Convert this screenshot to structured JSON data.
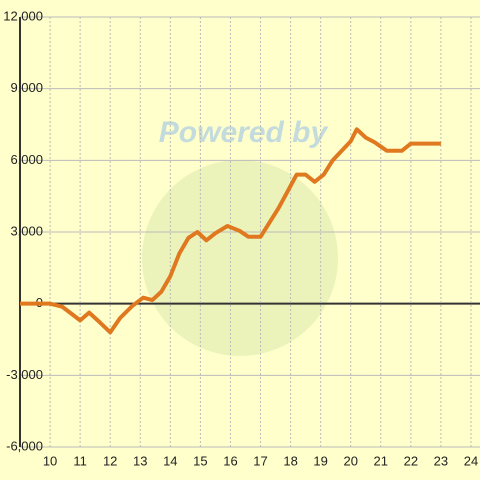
{
  "chart_data": {
    "type": "line",
    "watermark": "Powered by",
    "x": [
      9,
      10,
      10.4,
      11,
      11.3,
      11.67,
      12,
      12.33,
      12.73,
      13.1,
      13.4,
      13.7,
      14,
      14.3,
      14.6,
      14.9,
      15.2,
      15.5,
      15.9,
      16.3,
      16.6,
      17,
      17.3,
      17.6,
      17.9,
      18.2,
      18.5,
      18.8,
      19.1,
      19.4,
      19.7,
      20,
      20.2,
      20.5,
      20.8,
      21.2,
      21.7,
      22,
      23
    ],
    "series": [
      {
        "color": "#e07820",
        "values": [
          0,
          0,
          -125,
          -700,
          -375,
          -800,
          -1200,
          -600,
          -100,
          250,
          150,
          500,
          1150,
          2100,
          2750,
          3000,
          2650,
          2950,
          3250,
          3050,
          2800,
          2800,
          3400,
          4000,
          4700,
          5400,
          5400,
          5100,
          5400,
          6000,
          6400,
          6800,
          7300,
          6950,
          6750,
          6400,
          6400,
          6700,
          6700
        ]
      }
    ],
    "xlim": [
      9,
      24.3
    ],
    "xticks": [
      10,
      11,
      12,
      13,
      14,
      15,
      16,
      17,
      18,
      19,
      20,
      21,
      22,
      23,
      24
    ],
    "ylim": [
      -6000,
      12000
    ],
    "yticks": [
      {
        "value": -6000,
        "label": "-6,000"
      },
      {
        "value": -3000,
        "label": "-3,000"
      },
      0,
      {
        "value": 3000,
        "label": "3,000"
      },
      {
        "value": 6000,
        "label": "6,000"
      },
      {
        "value": 9000,
        "label": "9,000"
      },
      {
        "value": 12000,
        "label": "12,000"
      }
    ],
    "grid": true
  }
}
